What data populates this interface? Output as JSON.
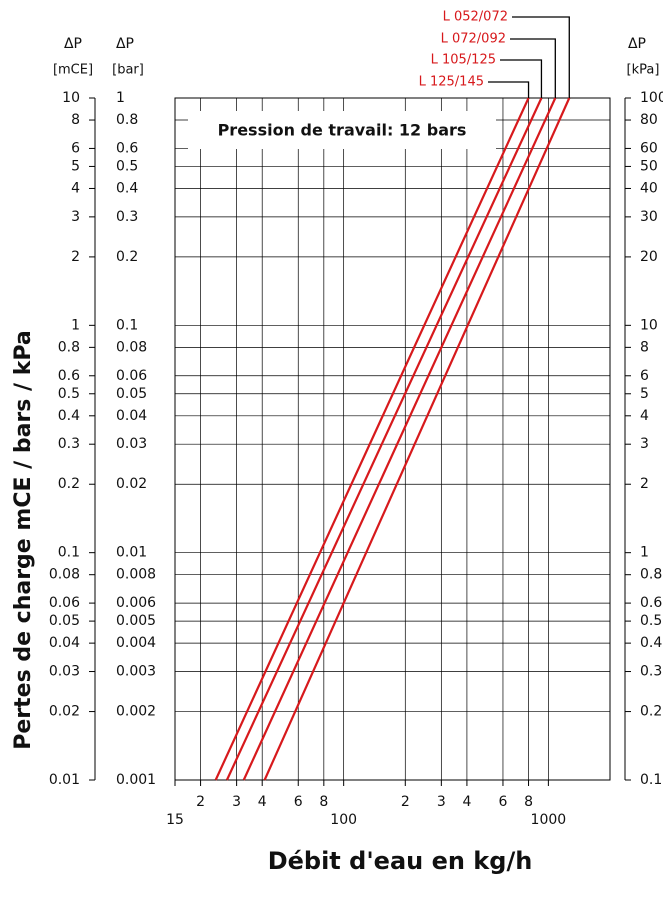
{
  "chart_data": {
    "type": "line",
    "x_label": "Débit d'eau en kg/h",
    "y_label": "Pertes de charge mCE / bars / kPa",
    "annotation": "Pression de travail: 12 bars",
    "y_header": [
      "ΔP",
      "[mCE]"
    ],
    "y2_header": [
      "ΔP",
      "[bar]"
    ],
    "y3_header": [
      "ΔP",
      "[kPa]"
    ],
    "xlog": true,
    "ylog": true,
    "grid": true,
    "xlim": [
      15,
      2000
    ],
    "xticks": [
      15,
      {
        "value": 20,
        "label": "2"
      },
      {
        "value": 30,
        "label": "3"
      },
      {
        "value": 40,
        "label": "4"
      },
      {
        "value": 60,
        "label": "6"
      },
      {
        "value": 80,
        "label": "8"
      },
      100,
      {
        "value": 200,
        "label": "2"
      },
      {
        "value": 300,
        "label": "3"
      },
      {
        "value": 400,
        "label": "4"
      },
      {
        "value": 600,
        "label": "6"
      },
      {
        "value": 800,
        "label": "8"
      },
      1000
    ],
    "ylim": [
      0.01,
      10
    ],
    "yticks": [
      10,
      8,
      6,
      5,
      4,
      3,
      2,
      1,
      0.8,
      0.6,
      0.5,
      0.4,
      0.3,
      0.2,
      0.1,
      0.08,
      0.06,
      0.05,
      0.04,
      0.03,
      0.02,
      0.01
    ],
    "y2lim": [
      0.001,
      1
    ],
    "y2ticks": [
      1,
      0.8,
      0.6,
      0.5,
      0.4,
      0.3,
      0.2,
      0.1,
      0.08,
      0.06,
      0.05,
      0.04,
      0.03,
      0.02,
      0.01,
      0.008,
      0.006,
      0.005,
      0.004,
      0.003,
      0.002,
      0.001
    ],
    "y3lim": [
      0.1,
      100
    ],
    "y3ticks": [
      100,
      80,
      60,
      50,
      40,
      30,
      20,
      10,
      8,
      6,
      5,
      4,
      3,
      2,
      1,
      0.8,
      0.6,
      0.5,
      0.4,
      0.3,
      0.2,
      0.1
    ],
    "series": [
      {
        "name": "L 052/072",
        "color": "#d7191c",
        "x": [
          41.1,
          1265
        ],
        "values": [
          0.01,
          10
        ]
      },
      {
        "name": "L 072/092",
        "color": "#d7191c",
        "x": [
          32.5,
          1081
        ],
        "values": [
          0.01,
          10
        ]
      },
      {
        "name": "L 105/125",
        "color": "#d7191c",
        "x": [
          26.9,
          925
        ],
        "values": [
          0.01,
          10
        ]
      },
      {
        "name": "L 125/145",
        "color": "#d7191c",
        "x": [
          23.7,
          800
        ],
        "values": [
          0.01,
          10
        ]
      }
    ]
  }
}
